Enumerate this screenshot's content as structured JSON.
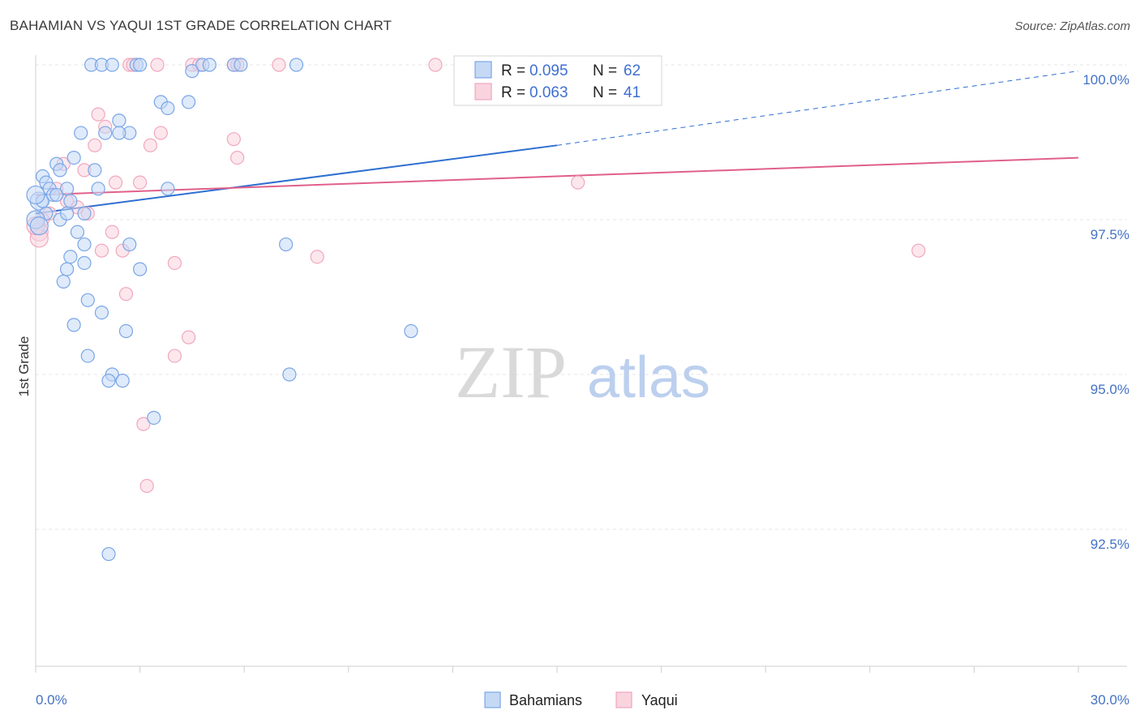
{
  "title": "BAHAMIAN VS YAQUI 1ST GRADE CORRELATION CHART",
  "source": "Source: ZipAtlas.com",
  "watermark": {
    "zip": "ZIP",
    "atlas": "atlas"
  },
  "legend": {
    "series1": {
      "r_label": "R =",
      "r_value": "0.095",
      "n_label": "N =",
      "n_value": "62"
    },
    "series2": {
      "r_label": "R =",
      "r_value": "0.063",
      "n_label": "N =",
      "n_value": "41"
    }
  },
  "chart_data": {
    "type": "scatter",
    "title": "BAHAMIAN VS YAQUI 1ST GRADE CORRELATION CHART",
    "xlabel": "",
    "ylabel": "1st Grade",
    "xlim": [
      0,
      30
    ],
    "ylim": [
      90.5,
      100.2
    ],
    "x_tick_labels": [
      "0.0%",
      "30.0%"
    ],
    "y_ticks": [
      {
        "value": 92.5,
        "label": "92.5%"
      },
      {
        "value": 95.0,
        "label": "95.0%"
      },
      {
        "value": 97.5,
        "label": "97.5%"
      },
      {
        "value": 100.0,
        "label": "100.0%"
      }
    ],
    "grid": true,
    "legend_position": "top-center",
    "series": [
      {
        "name": "Bahamians",
        "color": "#7aa6e6",
        "fill": "#c5d9f5",
        "line_color": "#2e6fd0",
        "trend": {
          "x0": 0,
          "y0": 97.6,
          "x1": 15,
          "y1": 98.7,
          "dashed_to_x": 30,
          "dashed_to_y": 99.9
        },
        "points": [
          [
            1.6,
            100.0
          ],
          [
            1.9,
            100.0
          ],
          [
            2.2,
            100.0
          ],
          [
            2.9,
            100.0
          ],
          [
            3.0,
            100.0
          ],
          [
            4.5,
            99.9
          ],
          [
            4.8,
            100.0
          ],
          [
            5.0,
            100.0
          ],
          [
            5.7,
            100.0
          ],
          [
            5.9,
            100.0
          ],
          [
            7.5,
            100.0
          ],
          [
            3.6,
            99.4
          ],
          [
            3.8,
            99.3
          ],
          [
            4.4,
            99.4
          ],
          [
            2.4,
            99.1
          ],
          [
            2.0,
            98.9
          ],
          [
            2.7,
            98.9
          ],
          [
            1.3,
            98.9
          ],
          [
            2.4,
            98.9
          ],
          [
            1.1,
            98.5
          ],
          [
            0.6,
            98.4
          ],
          [
            0.7,
            98.3
          ],
          [
            1.7,
            98.3
          ],
          [
            0.2,
            98.2
          ],
          [
            0.3,
            98.1
          ],
          [
            0.4,
            98.0
          ],
          [
            0.9,
            98.0
          ],
          [
            1.8,
            98.0
          ],
          [
            3.8,
            98.0
          ],
          [
            0.1,
            97.8
          ],
          [
            0.2,
            97.8
          ],
          [
            0.5,
            97.9
          ],
          [
            0.6,
            97.9
          ],
          [
            1.0,
            97.8
          ],
          [
            0.3,
            97.6
          ],
          [
            0.7,
            97.5
          ],
          [
            0.9,
            97.6
          ],
          [
            1.4,
            97.6
          ],
          [
            0.0,
            97.5
          ],
          [
            1.2,
            97.3
          ],
          [
            1.4,
            97.1
          ],
          [
            2.7,
            97.1
          ],
          [
            7.2,
            97.1
          ],
          [
            1.0,
            96.9
          ],
          [
            1.4,
            96.8
          ],
          [
            0.9,
            96.7
          ],
          [
            3.0,
            96.7
          ],
          [
            0.8,
            96.5
          ],
          [
            1.5,
            96.2
          ],
          [
            1.9,
            96.0
          ],
          [
            1.1,
            95.8
          ],
          [
            2.6,
            95.7
          ],
          [
            10.8,
            95.7
          ],
          [
            1.5,
            95.3
          ],
          [
            2.2,
            95.0
          ],
          [
            7.3,
            95.0
          ],
          [
            2.1,
            94.9
          ],
          [
            2.5,
            94.9
          ],
          [
            3.4,
            94.3
          ],
          [
            2.1,
            92.1
          ],
          [
            0.0,
            97.9
          ],
          [
            0.1,
            97.4
          ]
        ]
      },
      {
        "name": "Yaqui",
        "color": "#f1a7bd",
        "fill": "#f9d4df",
        "line_color": "#e0608a",
        "trend": {
          "x0": 0,
          "y0": 97.9,
          "x1": 30,
          "y1": 98.5
        },
        "points": [
          [
            2.7,
            100.0
          ],
          [
            2.8,
            100.0
          ],
          [
            3.5,
            100.0
          ],
          [
            4.5,
            100.0
          ],
          [
            4.7,
            100.0
          ],
          [
            5.7,
            100.0
          ],
          [
            5.8,
            100.0
          ],
          [
            7.0,
            100.0
          ],
          [
            11.5,
            100.0
          ],
          [
            1.8,
            99.2
          ],
          [
            2.0,
            99.0
          ],
          [
            3.6,
            98.9
          ],
          [
            5.7,
            98.8
          ],
          [
            1.7,
            98.7
          ],
          [
            3.3,
            98.7
          ],
          [
            5.8,
            98.5
          ],
          [
            0.8,
            98.4
          ],
          [
            1.4,
            98.3
          ],
          [
            3.0,
            98.1
          ],
          [
            2.3,
            98.1
          ],
          [
            0.6,
            98.0
          ],
          [
            15.6,
            98.1
          ],
          [
            0.9,
            97.8
          ],
          [
            1.2,
            97.7
          ],
          [
            1.5,
            97.6
          ],
          [
            0.4,
            97.6
          ],
          [
            0.2,
            97.5
          ],
          [
            0.1,
            97.3
          ],
          [
            0.1,
            97.2
          ],
          [
            2.2,
            97.3
          ],
          [
            1.9,
            97.0
          ],
          [
            2.5,
            97.0
          ],
          [
            8.1,
            96.9
          ],
          [
            4.0,
            96.8
          ],
          [
            25.4,
            97.0
          ],
          [
            2.6,
            96.3
          ],
          [
            4.4,
            95.6
          ],
          [
            4.0,
            95.3
          ],
          [
            3.1,
            94.2
          ],
          [
            3.2,
            93.2
          ],
          [
            0.0,
            97.4
          ]
        ]
      }
    ]
  },
  "bottom_legend": {
    "item1": "Bahamians",
    "item2": "Yaqui"
  }
}
